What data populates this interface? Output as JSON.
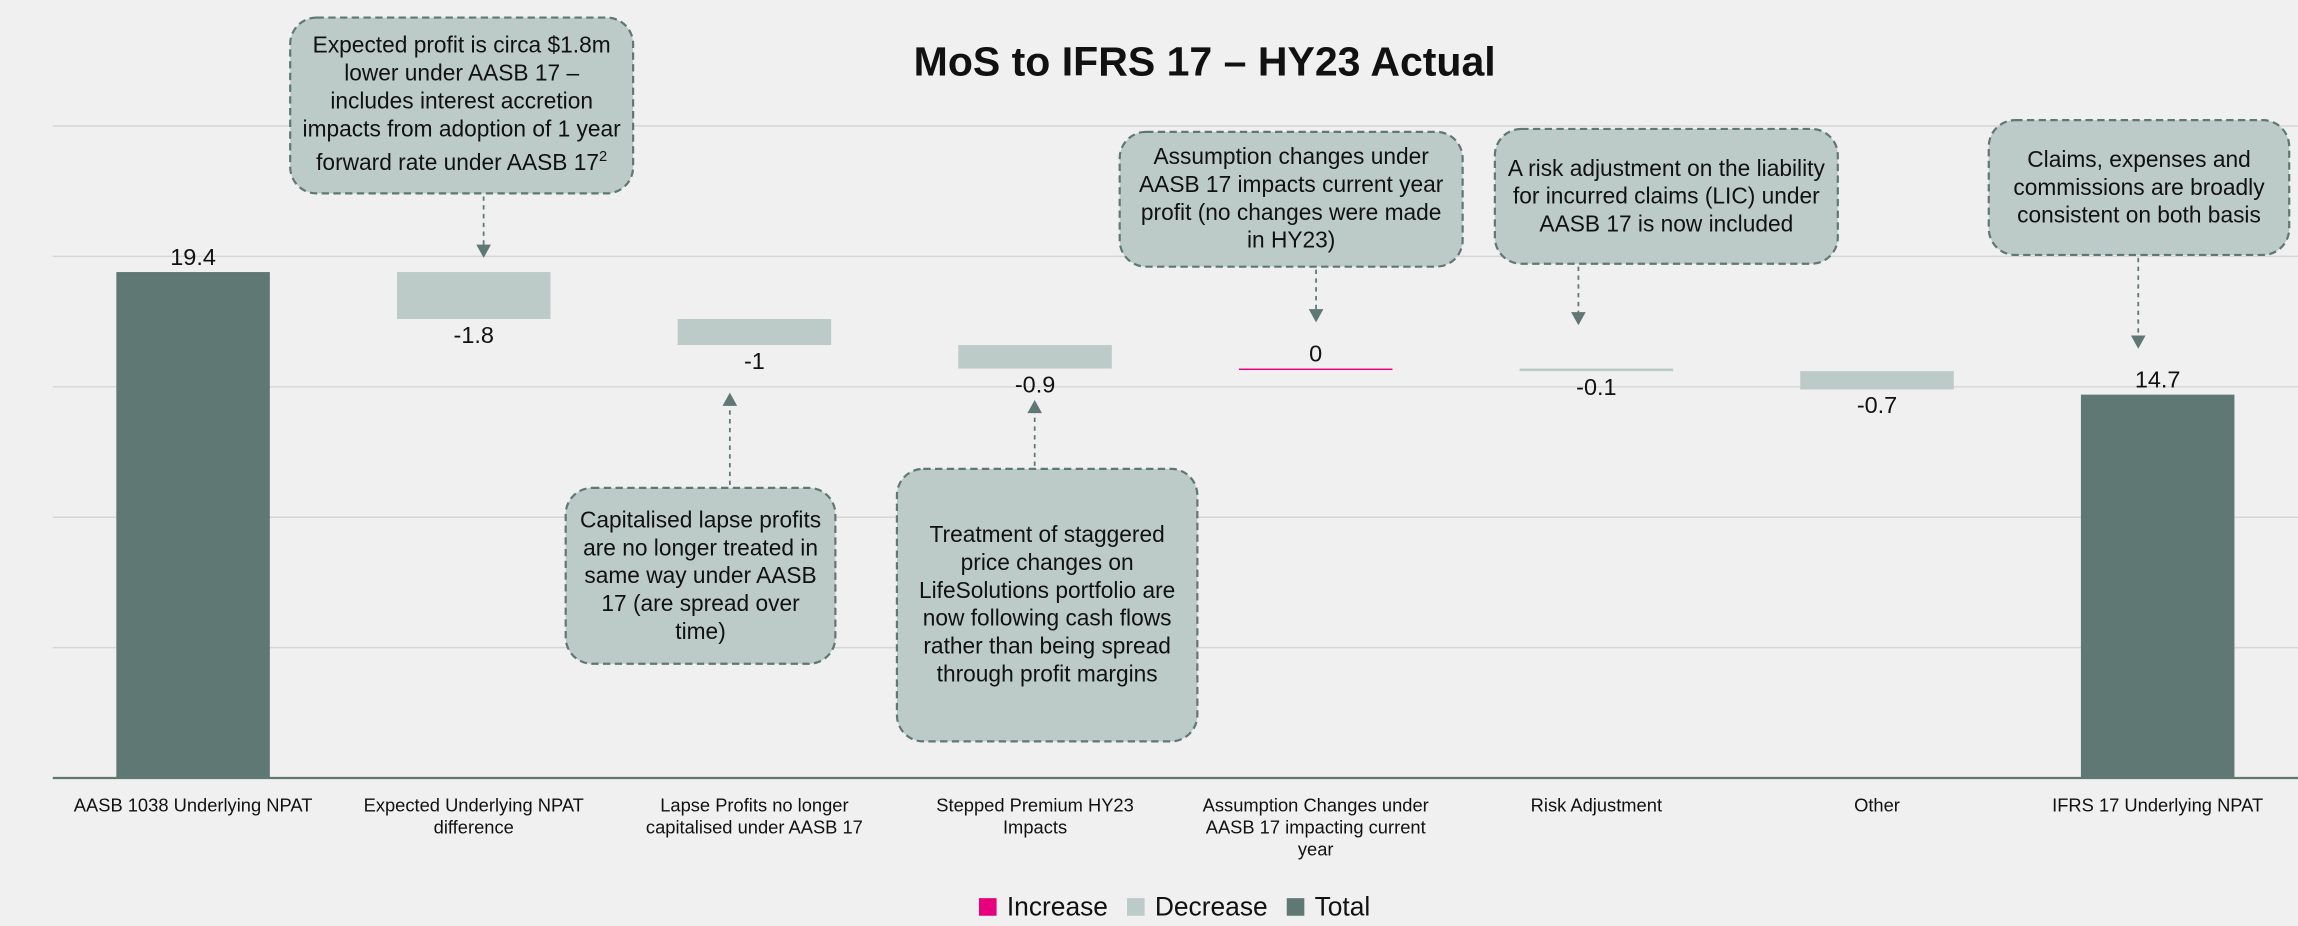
{
  "chart_data": {
    "type": "waterfall",
    "title": "MoS to IFRS 17 – HY23 Actual",
    "categories": [
      "AASB 1038 Underlying NPAT",
      "Expected Underlying NPAT difference",
      "Lapse Profits no longer capitalised under AASB 17",
      "Stepped Premium HY23 Impacts",
      "Assumption Changes under AASB 17 impacting current year",
      "Risk Adjustment",
      "Other",
      "IFRS 17 Underlying NPAT"
    ],
    "values": [
      19.4,
      -1.8,
      -1,
      -0.9,
      0,
      -0.1,
      -0.7,
      14.7
    ],
    "series": [
      {
        "name": "Increase",
        "color": "#e6007e"
      },
      {
        "name": "Decrease",
        "color": "#bccbc8"
      },
      {
        "name": "Total",
        "color": "#5f7873"
      }
    ],
    "ylim": [
      0,
      25
    ],
    "yticks": [
      0,
      5,
      10,
      15,
      20,
      25
    ],
    "grid": true,
    "legend": "bottom",
    "annotations": [
      {
        "text": "Expected profit is circa $1.8m lower under AASB 17 – includes interest accretion impacts from adoption of 1 year forward rate under AASB 17",
        "sup": "2"
      },
      {
        "text": "Capitalised lapse profits are no longer treated in same way under AASB 17 (are spread over time)"
      },
      {
        "text": "Treatment of staggered price changes on LifeSolutions portfolio are now following cash flows rather than being spread through profit margins"
      },
      {
        "text": "Assumption changes under AASB 17 impacts current year profit (no changes were made in HY23)"
      },
      {
        "text": "A risk adjustment on the liability for incurred claims (LIC) under AASB 17 is now included"
      },
      {
        "text": "Claims, expenses and commissions are broadly consistent on both basis"
      }
    ]
  }
}
